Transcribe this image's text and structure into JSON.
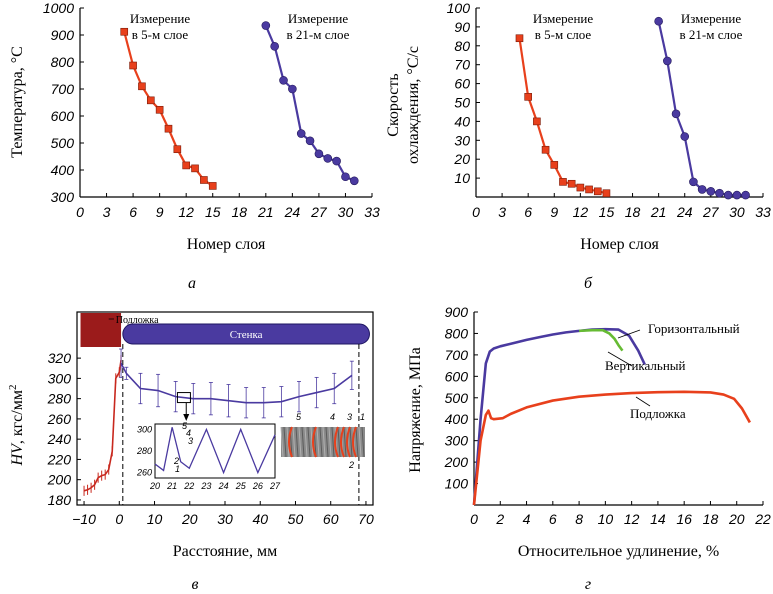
{
  "panels": {
    "a": "а",
    "b": "б",
    "c": "в",
    "d": "г"
  },
  "colors": {
    "red": "#e8401c",
    "purple": "#4a3aa0",
    "green": "#66bb33",
    "substrate": "#9b1b1b",
    "wall": "#4a3aa0"
  },
  "chart_data": [
    {
      "type": "line",
      "panel": "а",
      "xlabel": "Номер слоя",
      "ylabel": "Температура, °C",
      "xlim": [
        0,
        33
      ],
      "ylim": [
        300,
        1000
      ],
      "xticks": [
        0,
        3,
        6,
        9,
        12,
        15,
        18,
        21,
        24,
        27,
        30,
        33
      ],
      "yticks": [
        300,
        400,
        500,
        600,
        700,
        800,
        900,
        1000
      ],
      "annotations": [
        {
          "line1": "Измерение",
          "line2": "в 5-м слое"
        },
        {
          "line1": "Измерение",
          "line2": "в 21-м слое"
        }
      ],
      "series": [
        {
          "color": "#e8401c",
          "marker": "square",
          "x": [
            5,
            6,
            7,
            8,
            9,
            10,
            11,
            12,
            13,
            14,
            15
          ],
          "y": [
            912,
            787,
            710,
            658,
            623,
            553,
            477,
            417,
            406,
            363,
            341
          ]
        },
        {
          "color": "#4a3aa0",
          "marker": "circle",
          "x": [
            21,
            22,
            23,
            24,
            25,
            26,
            27,
            28,
            29,
            30,
            31
          ],
          "y": [
            935,
            858,
            732,
            700,
            535,
            508,
            460,
            443,
            433,
            375,
            360
          ]
        }
      ]
    },
    {
      "type": "line",
      "panel": "б",
      "xlabel": "Номер слоя",
      "ylabel_line1": "Скорость",
      "ylabel_line2": "охлаждения, °C/с",
      "xlim": [
        0,
        33
      ],
      "ylim": [
        0,
        100
      ],
      "xticks": [
        0,
        3,
        6,
        9,
        12,
        15,
        18,
        21,
        24,
        27,
        30,
        33
      ],
      "yticks": [
        10,
        20,
        30,
        40,
        50,
        60,
        70,
        80,
        90,
        100
      ],
      "annotations": [
        {
          "line1": "Измерение",
          "line2": "в 5-м слое"
        },
        {
          "line1": "Измерение",
          "line2": "в 21-м слое"
        }
      ],
      "series": [
        {
          "color": "#e8401c",
          "marker": "square",
          "x": [
            5,
            6,
            7,
            8,
            9,
            10,
            11,
            12,
            13,
            14,
            15
          ],
          "y": [
            84,
            53,
            40,
            25,
            17,
            8,
            7,
            5,
            4,
            3,
            2
          ]
        },
        {
          "color": "#4a3aa0",
          "marker": "circle",
          "x": [
            21,
            22,
            23,
            24,
            25,
            26,
            27,
            28,
            29,
            30,
            31
          ],
          "y": [
            93,
            72,
            44,
            32,
            8,
            4,
            3,
            2,
            1,
            1,
            1
          ]
        }
      ]
    },
    {
      "type": "line",
      "panel": "в",
      "xlabel": "Расстояние, мм",
      "ylabel": "HV, кгс/мм²",
      "ylabel_main": "HV",
      "ylabel_rest": ", кгс/мм",
      "ylabel_sup": "2",
      "xlim": [
        -12,
        72
      ],
      "ylim": [
        175,
        345
      ],
      "xticks": [
        -10,
        0,
        10,
        20,
        30,
        40,
        50,
        60,
        70
      ],
      "xticklabels": [
        "−10",
        "0",
        "10",
        "20",
        "30",
        "40",
        "50",
        "60",
        "70"
      ],
      "yticks": [
        180,
        200,
        220,
        240,
        260,
        280,
        300,
        320
      ],
      "labels": {
        "substrate": "Подложка",
        "wall": "Стенка"
      },
      "series": [
        {
          "color": "#c8281e",
          "name": "substrate",
          "x": [
            -10,
            -9,
            -8,
            -7,
            -6,
            -5,
            -4,
            -3,
            -2,
            -1,
            0,
            0.5
          ],
          "y": [
            189,
            190,
            192,
            195,
            202,
            204,
            205,
            210,
            228,
            300,
            306,
            318
          ]
        },
        {
          "color": "#4a3aa0",
          "name": "wall",
          "x": [
            0.5,
            2,
            6,
            11,
            16,
            21,
            26,
            31,
            36,
            41,
            46,
            51,
            56,
            61,
            66
          ],
          "y": [
            315,
            305,
            290,
            288,
            282,
            280,
            280,
            278,
            276,
            276,
            277,
            282,
            286,
            290,
            303
          ],
          "err": [
            14,
            6,
            15,
            16,
            15,
            15,
            16,
            16,
            15,
            15,
            15,
            15,
            15,
            15,
            14
          ]
        }
      ],
      "inset": {
        "xticks": [
          20,
          21,
          22,
          23,
          24,
          25,
          26,
          27
        ],
        "yticks": [
          260,
          280,
          300
        ],
        "xlim": [
          20,
          27
        ],
        "ylim": [
          255,
          305
        ],
        "x": [
          20,
          20.5,
          21,
          21.5,
          22,
          23,
          24,
          25,
          26,
          27
        ],
        "y": [
          268,
          262,
          302,
          270,
          264,
          300,
          260,
          300,
          260,
          295
        ],
        "labels": [
          "1",
          "2",
          "3",
          "4",
          "5"
        ]
      },
      "micro_labels": [
        "5",
        "4",
        "3",
        "1",
        "2"
      ]
    },
    {
      "type": "line",
      "panel": "г",
      "xlabel": "Относительное удлинение, %",
      "ylabel": "Напряжение, МПа",
      "xlim": [
        0,
        22
      ],
      "ylim": [
        0,
        900
      ],
      "xticks": [
        0,
        2,
        4,
        6,
        8,
        10,
        12,
        14,
        16,
        18,
        20,
        22
      ],
      "yticks": [
        100,
        200,
        300,
        400,
        500,
        600,
        700,
        800,
        900
      ],
      "series": [
        {
          "name": "Горизонтальный",
          "color": "#4a3aa0",
          "x": [
            0,
            0.5,
            0.9,
            1.2,
            1.5,
            2,
            3,
            4,
            5,
            6,
            7,
            8,
            9,
            10,
            11,
            11.8,
            12.5,
            13
          ],
          "y": [
            0,
            400,
            660,
            715,
            730,
            740,
            755,
            770,
            783,
            795,
            805,
            812,
            818,
            820,
            818,
            790,
            720,
            655
          ]
        },
        {
          "name": "Вертикальный",
          "color": "#66bb33",
          "x": [
            8,
            9,
            9.8,
            10.3,
            10.7,
            11,
            11.3
          ],
          "y": [
            812,
            815,
            815,
            800,
            775,
            745,
            720
          ]
        },
        {
          "name": "Подложка",
          "color": "#e8401c",
          "x": [
            0,
            0.5,
            0.9,
            1.1,
            1.3,
            1.5,
            2.2,
            2.8,
            4,
            6,
            8,
            10,
            12,
            14,
            16,
            18,
            19,
            19.8,
            20.4,
            21
          ],
          "y": [
            0,
            300,
            420,
            440,
            405,
            400,
            405,
            425,
            455,
            487,
            505,
            515,
            522,
            526,
            528,
            525,
            515,
            495,
            450,
            385
          ]
        }
      ]
    }
  ]
}
